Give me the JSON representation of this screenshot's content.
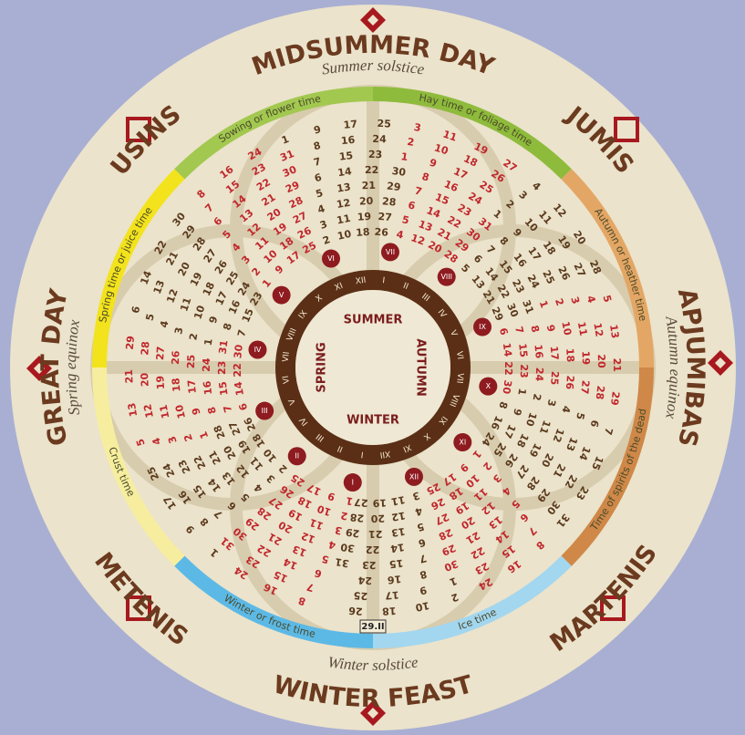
{
  "festivals": [
    {
      "name": "MIDSUMMER DAY",
      "subtitle": "Summer solstice"
    },
    {
      "name": "JUMIS"
    },
    {
      "name": "APJUMIBAS",
      "subtitle": "Autumn equinox"
    },
    {
      "name": "MARTENIS"
    },
    {
      "name": "WINTER FEAST",
      "subtitle": "Winter solstice"
    },
    {
      "name": "METENIS"
    },
    {
      "name": "GREAT DAY",
      "subtitle": "Spring equinox"
    },
    {
      "name": "USINS"
    }
  ],
  "times": [
    {
      "label": "Hay time or foliage time",
      "color": "#8fbb3c"
    },
    {
      "label": "Autumn or heather time",
      "color": "#e4a664"
    },
    {
      "label": "Time of spirits of the dead",
      "color": "#cf8848"
    },
    {
      "label": "Ice time",
      "color": "#a3d6ef"
    },
    {
      "label": "Winter or frost time",
      "color": "#5cb9e6"
    },
    {
      "label": "Crust time",
      "color": "#f6ee9e"
    },
    {
      "label": "Spring time or juice time",
      "color": "#f3e31c"
    },
    {
      "label": "Sowing or flower time",
      "color": "#a2c850"
    }
  ],
  "seasons": [
    "SUMMER",
    "AUTUMN",
    "WINTER",
    "SPRING"
  ],
  "months": [
    {
      "roman": "I",
      "days": [
        1,
        2,
        3,
        4,
        5,
        6,
        7,
        8,
        9,
        10,
        11,
        12,
        13,
        14,
        15,
        16,
        17,
        18,
        19,
        20,
        21,
        22,
        23,
        24,
        25,
        26,
        27,
        28,
        29,
        30,
        31
      ]
    },
    {
      "roman": "II",
      "days": [
        1,
        2,
        3,
        4,
        5,
        6,
        7,
        8,
        9,
        10,
        11,
        12,
        13,
        14,
        15,
        16,
        17,
        18,
        19,
        20,
        21,
        22,
        23,
        24,
        25,
        26,
        27,
        28
      ]
    },
    {
      "roman": "III",
      "days": [
        1,
        2,
        3,
        4,
        5,
        6,
        7,
        8,
        9,
        10,
        11,
        12,
        13,
        14,
        15,
        16,
        17,
        18,
        19,
        20,
        21,
        22,
        23,
        24,
        25,
        26,
        27,
        28,
        29,
        30,
        31
      ]
    },
    {
      "roman": "IV",
      "days": [
        1,
        2,
        3,
        4,
        5,
        6,
        7,
        8,
        9,
        10,
        11,
        12,
        13,
        14,
        15,
        16,
        17,
        18,
        19,
        20,
        21,
        22,
        23,
        24,
        25,
        26,
        27,
        28,
        29,
        30
      ]
    },
    {
      "roman": "V",
      "days": [
        1,
        2,
        3,
        4,
        5,
        6,
        7,
        8,
        9,
        10,
        11,
        12,
        13,
        14,
        15,
        16,
        17,
        18,
        19,
        20,
        21,
        22,
        23,
        24,
        25,
        26,
        27,
        28,
        29,
        30,
        31
      ]
    },
    {
      "roman": "VI",
      "days": [
        1,
        2,
        3,
        4,
        5,
        6,
        7,
        8,
        9,
        10,
        11,
        12,
        13,
        14,
        15,
        16,
        17,
        18,
        19,
        20,
        21,
        22,
        23,
        24,
        25,
        26,
        27,
        28,
        29,
        30
      ]
    },
    {
      "roman": "VII",
      "days": [
        1,
        2,
        3,
        4,
        5,
        6,
        7,
        8,
        9,
        10,
        11,
        12,
        13,
        14,
        15,
        16,
        17,
        18,
        19,
        20,
        21,
        22,
        23,
        24,
        25,
        26,
        27,
        28,
        29,
        30,
        31
      ]
    },
    {
      "roman": "VIII",
      "days": [
        1,
        2,
        3,
        4,
        5,
        6,
        7,
        8,
        9,
        10,
        11,
        12,
        13,
        14,
        15,
        16,
        17,
        18,
        19,
        20,
        21,
        22,
        23,
        24,
        25,
        26,
        27,
        28,
        29,
        30,
        31
      ]
    },
    {
      "roman": "IX",
      "days": [
        1,
        2,
        3,
        4,
        5,
        6,
        7,
        8,
        9,
        10,
        11,
        12,
        13,
        14,
        15,
        16,
        17,
        18,
        19,
        20,
        21,
        22,
        23,
        24,
        25,
        26,
        27,
        28,
        29,
        30
      ]
    },
    {
      "roman": "X",
      "days": [
        1,
        2,
        3,
        4,
        5,
        6,
        7,
        8,
        9,
        10,
        11,
        12,
        13,
        14,
        15,
        16,
        17,
        18,
        19,
        20,
        21,
        22,
        23,
        24,
        25,
        26,
        27,
        28,
        29,
        30,
        31
      ]
    },
    {
      "roman": "XI",
      "days": [
        1,
        2,
        3,
        4,
        5,
        6,
        7,
        8,
        9,
        10,
        11,
        12,
        13,
        14,
        15,
        16,
        17,
        18,
        19,
        20,
        21,
        22,
        23,
        24,
        25,
        26,
        27,
        28,
        29,
        30
      ]
    },
    {
      "roman": "XII",
      "days": [
        1,
        2,
        3,
        4,
        5,
        6,
        7,
        8,
        9,
        10,
        11,
        12,
        13,
        14,
        15,
        16,
        17,
        18,
        19,
        20,
        21,
        22,
        23,
        24,
        25,
        26,
        27,
        28,
        29,
        30,
        31
      ]
    }
  ],
  "leap_day": "29.II"
}
